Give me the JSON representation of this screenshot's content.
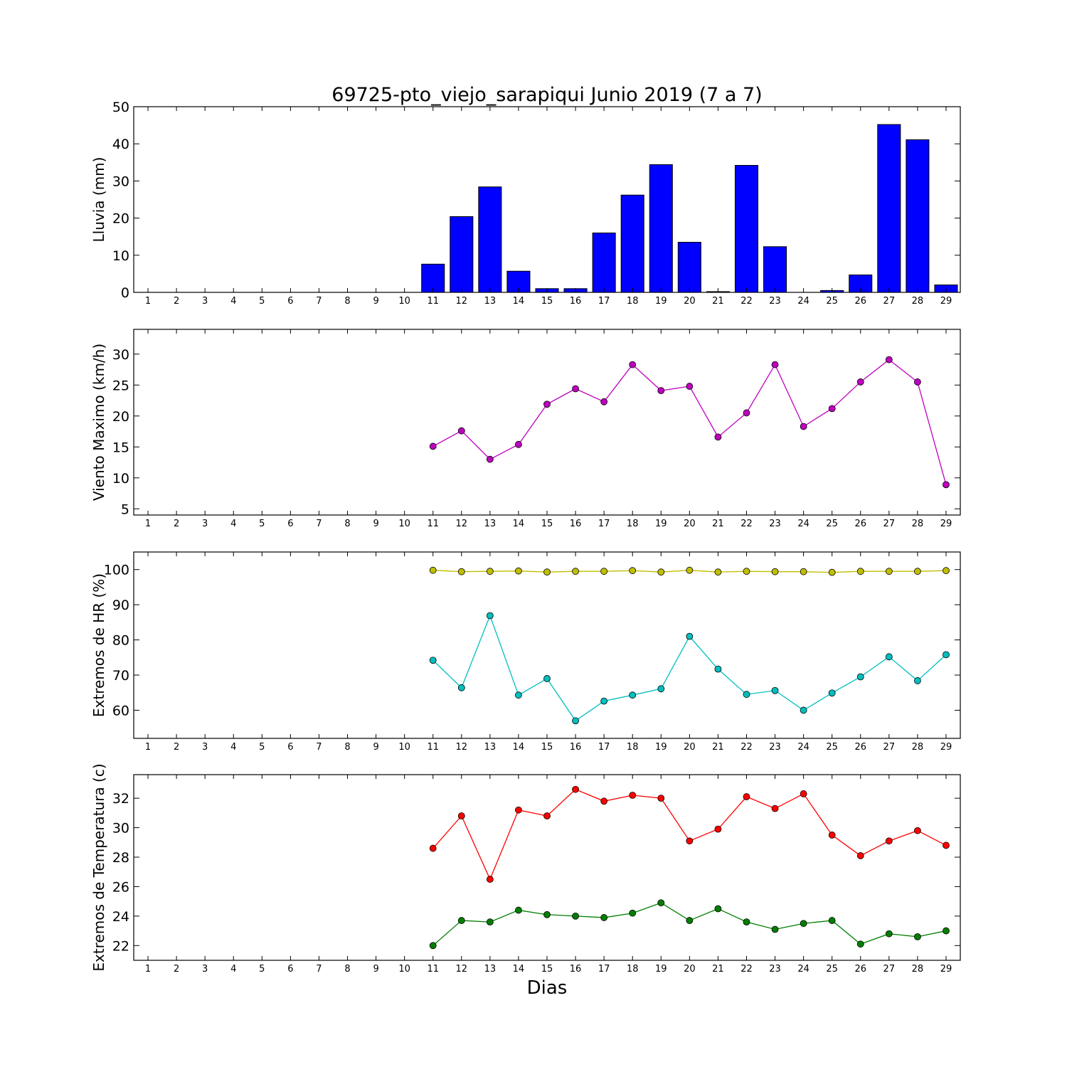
{
  "title": "69725-pto_viejo_sarapiqui Junio 2019  (7 a 7)",
  "xlabel": "Dias",
  "days": [
    1,
    2,
    3,
    4,
    5,
    6,
    7,
    8,
    9,
    10,
    11,
    12,
    13,
    14,
    15,
    16,
    17,
    18,
    19,
    20,
    21,
    22,
    23,
    24,
    25,
    26,
    27,
    28,
    29
  ],
  "chart_data": [
    {
      "type": "bar",
      "ylabel": "Lluvia (mm)",
      "ylim": [
        0,
        50
      ],
      "yticks": [
        0,
        10,
        20,
        30,
        40,
        50
      ],
      "categories": [
        1,
        2,
        3,
        4,
        5,
        6,
        7,
        8,
        9,
        10,
        11,
        12,
        13,
        14,
        15,
        16,
        17,
        18,
        19,
        20,
        21,
        22,
        23,
        24,
        25,
        26,
        27,
        28,
        29
      ],
      "series": [
        {
          "color": "#0000ff",
          "values": [
            0,
            0,
            0,
            0,
            0,
            0,
            0,
            0,
            0,
            0,
            7.6,
            20.4,
            28.4,
            5.7,
            1.0,
            1.0,
            16.0,
            26.2,
            34.4,
            13.5,
            0.2,
            34.2,
            12.3,
            0,
            0.5,
            4.7,
            45.2,
            41.1,
            2.0
          ]
        }
      ]
    },
    {
      "type": "line",
      "ylabel": "Viento Maximo (km/h)",
      "ylim": [
        4,
        34
      ],
      "yticks": [
        5,
        10,
        15,
        20,
        25,
        30
      ],
      "x": [
        11,
        12,
        13,
        14,
        15,
        16,
        17,
        18,
        19,
        20,
        21,
        22,
        23,
        24,
        25,
        26,
        27,
        28,
        29
      ],
      "series": [
        {
          "color": "#bf00bf",
          "values": [
            15.1,
            17.6,
            13.0,
            15.4,
            21.9,
            24.4,
            22.3,
            28.3,
            24.1,
            24.8,
            16.6,
            20.5,
            28.3,
            18.3,
            21.2,
            25.5,
            29.1,
            25.5,
            8.9
          ]
        }
      ]
    },
    {
      "type": "line",
      "ylabel": "Extremos de HR (%)",
      "ylim": [
        52,
        105
      ],
      "yticks": [
        60,
        70,
        80,
        90,
        100
      ],
      "x": [
        11,
        12,
        13,
        14,
        15,
        16,
        17,
        18,
        19,
        20,
        21,
        22,
        23,
        24,
        25,
        26,
        27,
        28,
        29
      ],
      "series": [
        {
          "color": "#bfbf00",
          "values": [
            99.8,
            99.4,
            99.5,
            99.6,
            99.3,
            99.5,
            99.5,
            99.7,
            99.3,
            99.8,
            99.3,
            99.5,
            99.4,
            99.4,
            99.2,
            99.5,
            99.5,
            99.5,
            99.7
          ]
        },
        {
          "color": "#00bfbf",
          "values": [
            74.2,
            66.4,
            86.9,
            64.3,
            69.0,
            57.0,
            62.6,
            64.3,
            66.1,
            81.0,
            71.7,
            64.5,
            65.6,
            60.0,
            64.9,
            69.5,
            75.2,
            68.4,
            75.8
          ]
        }
      ]
    },
    {
      "type": "line",
      "ylabel": "Extremos de Temperatura (c)",
      "ylim": [
        21,
        33.6
      ],
      "yticks": [
        22,
        24,
        26,
        28,
        30,
        32
      ],
      "x": [
        11,
        12,
        13,
        14,
        15,
        16,
        17,
        18,
        19,
        20,
        21,
        22,
        23,
        24,
        25,
        26,
        27,
        28,
        29
      ],
      "series": [
        {
          "color": "#ff0000",
          "values": [
            28.6,
            30.8,
            26.5,
            31.2,
            30.8,
            32.6,
            31.8,
            32.2,
            32.0,
            29.1,
            29.9,
            32.1,
            31.3,
            32.3,
            29.5,
            28.1,
            29.1,
            29.8,
            28.8
          ]
        },
        {
          "color": "#007f00",
          "values": [
            22.0,
            23.7,
            23.6,
            24.4,
            24.1,
            24.0,
            23.9,
            24.2,
            24.9,
            23.7,
            24.5,
            23.6,
            23.1,
            23.5,
            23.7,
            22.1,
            22.8,
            22.6,
            23.0
          ]
        }
      ]
    }
  ]
}
